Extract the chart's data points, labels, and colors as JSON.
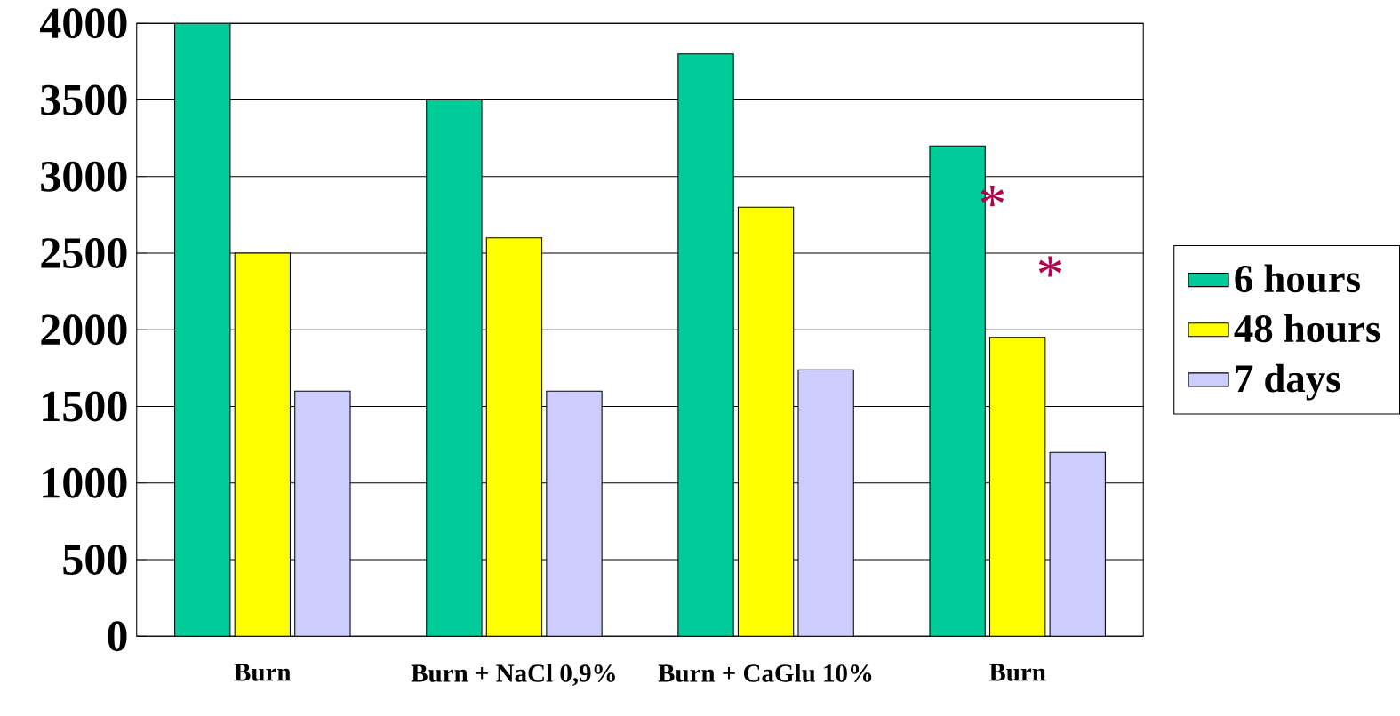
{
  "chart_data": {
    "type": "bar",
    "categories": [
      "Burn",
      "Burn + NaCl 0,9%",
      "Burn + CaGlu 10%",
      "Burn"
    ],
    "series": [
      {
        "name": "6 hours",
        "color": "#00cc99",
        "values": [
          4000,
          3500,
          3800,
          3200
        ]
      },
      {
        "name": "48 hours",
        "color": "#ffff00",
        "values": [
          2500,
          2600,
          2800,
          1950
        ]
      },
      {
        "name": "7 days",
        "color": "#ccccff",
        "values": [
          1600,
          1600,
          1740,
          1200
        ]
      }
    ],
    "ylim": [
      0,
      4000
    ],
    "yticks": [
      0,
      500,
      1000,
      1500,
      2000,
      2500,
      3000,
      3500,
      4000
    ],
    "grid": "y",
    "legend": "right",
    "annotations": [
      "*",
      "*"
    ]
  }
}
